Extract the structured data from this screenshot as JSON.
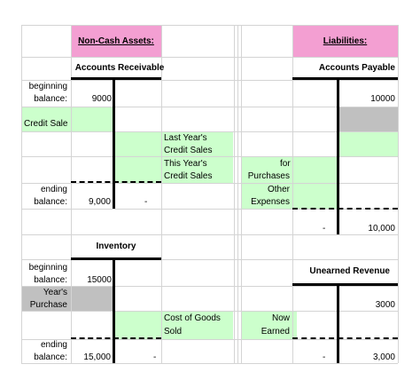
{
  "headers": {
    "non_cash_assets": "Non-Cash Assets:",
    "liabilities": "Liabilities:"
  },
  "accounts_receivable": {
    "title": "Accounts Receivable",
    "beginning_label_1": "beginning",
    "beginning_label_2": "balance:",
    "beginning_value": "9000",
    "credit_sales": "Credit Sale",
    "last_year_1": "Last Year's",
    "last_year_2": "Credit Sales",
    "this_year_1": "This Year's",
    "this_year_2": "Credit Sales",
    "ending_label_1": "ending",
    "ending_label_2": "balance:",
    "ending_value": "9,000",
    "ending_right": "-"
  },
  "accounts_payable": {
    "title": "Accounts Payable",
    "beginning_value": "10000",
    "for_label": "for",
    "purchases_label": "Purchases",
    "other_label": "Other",
    "expenses_label": "Expenses",
    "ending_left": "-",
    "ending_value": "10,000"
  },
  "inventory": {
    "title": "Inventory",
    "beginning_label_1": "beginning",
    "beginning_label_2": "balance:",
    "beginning_value": "15000",
    "years_label": "Year's",
    "purchase_label": "Purchase",
    "cogs_1": "Cost of Goods",
    "cogs_2": "Sold",
    "ending_label_1": "ending",
    "ending_label_2": "balance:",
    "ending_value": "15,000",
    "ending_right": "-"
  },
  "unearned_revenue": {
    "title": "Unearned Revenue",
    "value": "3000",
    "now_label": "Now",
    "earned_label": "Earned",
    "ending_left": "-",
    "ending_value": "3,000"
  },
  "colors": {
    "pink": "#f39fd2",
    "green": "#ccffcc",
    "gray": "#c0c0c0"
  }
}
